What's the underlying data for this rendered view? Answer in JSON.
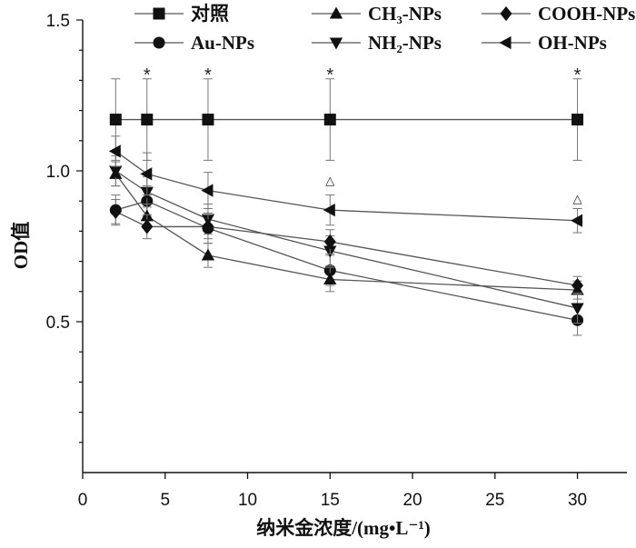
{
  "chart_data": {
    "type": "line",
    "xlabel": "纳米金浓度/(mg•L⁻¹)",
    "ylabel": "OD值",
    "xlim": [
      0,
      33
    ],
    "ylim": [
      0.0,
      1.5
    ],
    "x_ticks": [
      0,
      5,
      10,
      15,
      20,
      25,
      30
    ],
    "x_tick_labels": [
      "0",
      "5",
      "10",
      "15",
      "20",
      "25",
      "30"
    ],
    "y_ticks": [
      0.5,
      1.0,
      1.5
    ],
    "y_tick_labels": [
      "0.5",
      "1.0",
      "1.5"
    ],
    "legend_position": "top",
    "legend_columns": 3,
    "series": [
      {
        "name": "对照",
        "marker": "square",
        "x": [
          2,
          3.9,
          7.6,
          15,
          30
        ],
        "y": [
          1.17,
          1.17,
          1.17,
          1.17,
          1.17
        ],
        "err": [
          0.135,
          0.135,
          0.135,
          0.135,
          0.135
        ]
      },
      {
        "name": "Au-NPs",
        "marker": "circle",
        "x": [
          2,
          3.9,
          7.6,
          15,
          30
        ],
        "y": [
          0.87,
          0.9,
          0.81,
          0.67,
          0.505
        ],
        "err": [
          0.05,
          0.05,
          0.05,
          0.05,
          0.05
        ]
      },
      {
        "name": "CH₃-NPs",
        "marker": "triangle-up",
        "x": [
          2,
          3.9,
          7.6,
          15,
          30
        ],
        "y": [
          0.99,
          0.85,
          0.72,
          0.64,
          0.605
        ],
        "err": [
          0.04,
          0.04,
          0.04,
          0.04,
          0.03
        ]
      },
      {
        "name": "NH₂-NPs",
        "marker": "triangle-down",
        "x": [
          2,
          3.9,
          7.6,
          15,
          30
        ],
        "y": [
          1.0,
          0.93,
          0.84,
          0.735,
          0.545
        ],
        "err": [
          0.05,
          0.05,
          0.05,
          0.05,
          0.05
        ]
      },
      {
        "name": "COOH-NPs",
        "marker": "diamond",
        "x": [
          2,
          3.9,
          7.6,
          15,
          30
        ],
        "y": [
          0.865,
          0.815,
          0.815,
          0.765,
          0.62
        ],
        "err": [
          0.04,
          0.04,
          0.04,
          0.04,
          0.03
        ]
      },
      {
        "name": "OH-NPs",
        "marker": "triangle-left",
        "x": [
          2,
          3.9,
          7.6,
          15,
          30
        ],
        "y": [
          1.065,
          0.99,
          0.935,
          0.87,
          0.835
        ],
        "err": [
          0.05,
          0.07,
          0.06,
          0.05,
          0.04
        ]
      }
    ],
    "annotations": [
      {
        "text": "*",
        "x": 3.9,
        "y": 1.335
      },
      {
        "text": "*",
        "x": 7.6,
        "y": 1.335
      },
      {
        "text": "*",
        "x": 15,
        "y": 1.335
      },
      {
        "text": "*",
        "x": 30,
        "y": 1.335
      },
      {
        "text": "△",
        "x": 15,
        "y": 0.97
      },
      {
        "text": "△",
        "x": 30,
        "y": 0.91
      }
    ],
    "colors": {
      "line": "#555555",
      "marker": "#111111",
      "axis": "#111111",
      "errorbar": "#777777"
    }
  }
}
